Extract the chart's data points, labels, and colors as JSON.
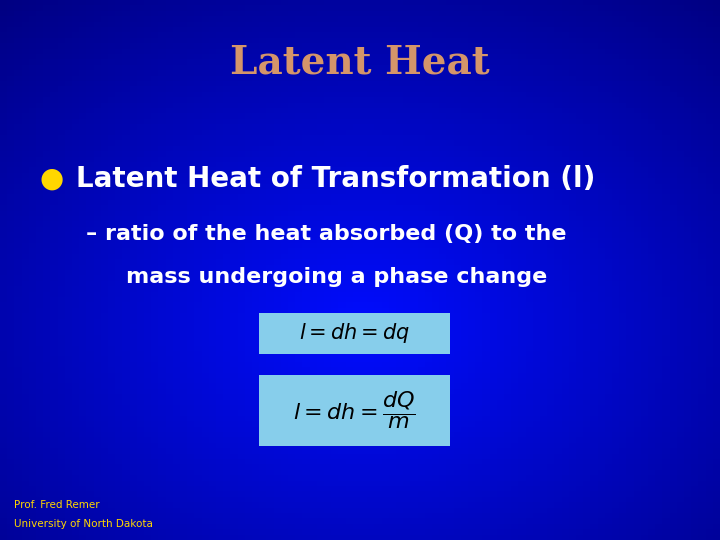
{
  "title": "Latent Heat",
  "title_color": "#D4956A",
  "title_fontsize": 28,
  "bullet_text": "Latent Heat of Transformation (l)",
  "bullet_color": "#FFFFFF",
  "bullet_fontsize": 20,
  "bullet_marker": "●",
  "bullet_marker_color": "#FFD700",
  "sub_text_line1": "– ratio of the heat absorbed (Q) to the",
  "sub_text_line2": "mass undergoing a phase change",
  "sub_color": "#FFFFFF",
  "sub_fontsize": 16,
  "eq_box_color": "#87CEEB",
  "eq_text_color": "#000000",
  "eq_fontsize": 15,
  "footer_text1": "Prof. Fred Remer",
  "footer_text2": "University of North Dakota",
  "footer_color": "#FFD700",
  "footer_fontsize": 7.5
}
